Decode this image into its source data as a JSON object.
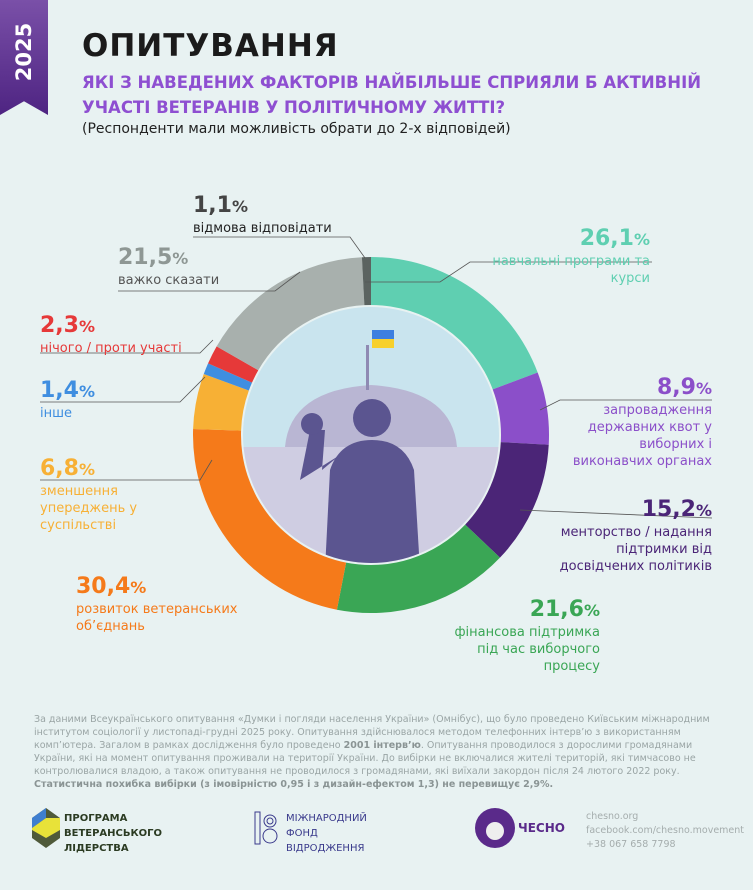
{
  "year": "2025",
  "title": "ОПИТУВАННЯ",
  "question": "ЯКІ З НАВЕДЕНИХ ФАКТОРІВ НАЙБІЛЬШЕ СПРИЯЛИ Б АКТИВНІЙ УЧАСТІ ВЕТЕРАНІВ У ПОЛІТИЧНОМУ ЖИТТІ?",
  "note": "(Респонденти мали можливість обрати до 2-х відповідей)",
  "chart_data": {
    "type": "pie",
    "title": "Які з наведених факторів найбільше сприяли б активній участі ветеранів у політичному житті?",
    "slices": [
      {
        "label": "навчальні програми та курси",
        "value": 26.1,
        "text": "26,1",
        "color": "#5fcfb1"
      },
      {
        "label": "запровадження державних квот у виборних і виконавчих органах",
        "value": 8.9,
        "text": "8,9",
        "color": "#8b4fc9"
      },
      {
        "label": "менторство / надання підтримки від досвідчених політиків",
        "value": 15.2,
        "text": "15,2",
        "color": "#4b2577"
      },
      {
        "label": "фінансова підтримка під час виборчого процесу",
        "value": 21.6,
        "text": "21,6",
        "color": "#3aa655"
      },
      {
        "label": "розвиток ветеранських об’єднань",
        "value": 30.4,
        "text": "30,4",
        "color": "#f57a1a"
      },
      {
        "label": "зменшення упереджень у суспільстві",
        "value": 6.8,
        "text": "6,8",
        "color": "#f7b035"
      },
      {
        "label": "інше",
        "value": 1.4,
        "text": "1,4",
        "color": "#3f8ee0"
      },
      {
        "label": "нічого / проти участі",
        "value": 2.3,
        "text": "2,3",
        "color": "#e63939"
      },
      {
        "label": "важко сказати",
        "value": 21.5,
        "text": "21,5",
        "color": "#a8b0ad"
      },
      {
        "label": "відмова відповідати",
        "value": 1.1,
        "text": "1,1",
        "color": "#5b6360"
      }
    ]
  },
  "footer": {
    "t1": "За даними Всеукраїнського опитування «Думки і погляди населення України» (Омнібус), що було проведено Київським міжнародним інститутом соціології у листопаді-грудні 2025 року. Опитування здійснювалося методом телефонних інтерв’ю з використанням комп’ютера. Загалом в рамках дослідження було проведено ",
    "b1": "2001 інтерв’ю",
    "t2": ". Опитування проводилося з дорослими громадянами України, які на момент опитування проживали на території України. До вибірки не включалися жителі територій, які тимчасово не контролювалися владою, а також опитування не проводилося з громадянами, які виїхали закордон після 24 лютого 2022 року. ",
    "b2": "Статистична похибка вибірки (з імовірністю 0,95 і з дизайн-ефектом 1,3) не перевищує 2,9%."
  },
  "logos": {
    "pvl": [
      "ПРОГРАМА",
      "ВЕТЕРАНСЬКОГО",
      "ЛІДЕРСТВА"
    ],
    "irf": [
      "МІЖНАРОДНИЙ",
      "ФОНД",
      "ВІДРОДЖЕННЯ"
    ],
    "chesno": "ЧЕСНО",
    "contacts": [
      "chesno.org",
      "facebook.com/chesno.movement",
      "+38 067 658 7798"
    ]
  }
}
